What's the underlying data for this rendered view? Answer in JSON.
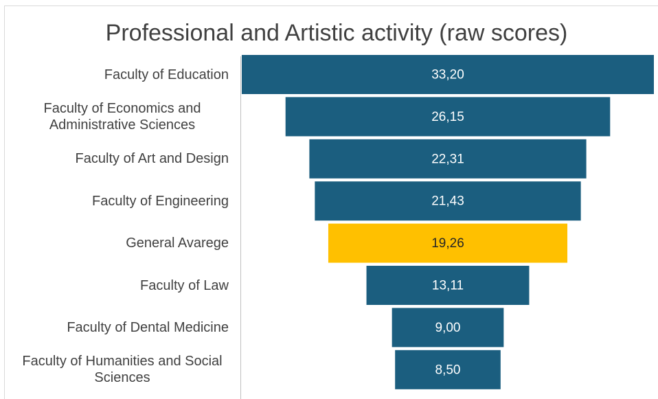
{
  "chart_data": {
    "type": "funnel",
    "title": "Professional and Artistic activity (raw scores)",
    "categories": [
      "Faculty of Education",
      "Faculty of Economics and Administrative Sciences",
      "Faculty of Art and Design",
      "Faculty of Engineering",
      "General Avarege",
      "Faculty of Law",
      "Faculty of Dental Medicine",
      "Faculty of Humanities and Social Sciences"
    ],
    "values": [
      33.2,
      26.15,
      22.31,
      21.43,
      19.26,
      13.11,
      9.0,
      8.5
    ],
    "value_labels": [
      "33,20",
      "26,15",
      "22,31",
      "21,43",
      "19,26",
      "13,11",
      "9,00",
      "8,50"
    ],
    "colors": [
      "#1b5e7f",
      "#1b5e7f",
      "#1b5e7f",
      "#1b5e7f",
      "#ffc000",
      "#1b5e7f",
      "#1b5e7f",
      "#1b5e7f"
    ]
  }
}
